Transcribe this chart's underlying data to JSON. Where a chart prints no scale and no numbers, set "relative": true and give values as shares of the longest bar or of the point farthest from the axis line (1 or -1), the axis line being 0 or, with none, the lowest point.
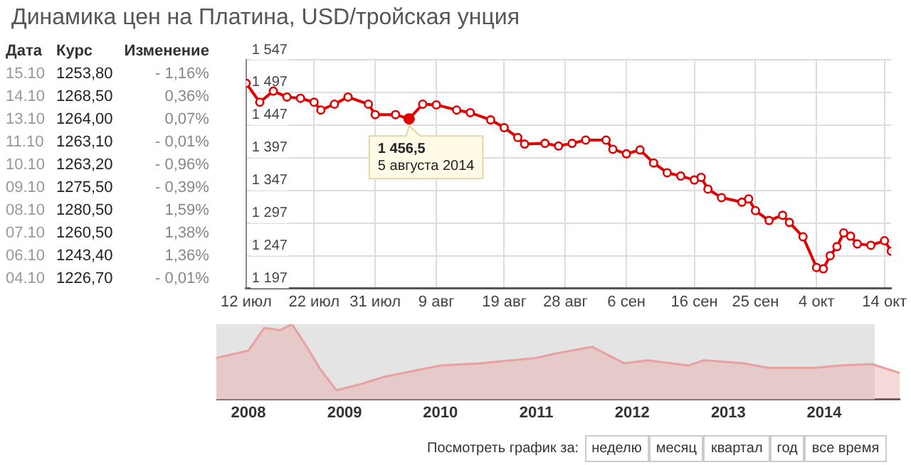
{
  "chart_data": [
    {
      "type": "other",
      "xlabel": "Дата",
      "categories": [
        "15.10",
        "14.10",
        "13.10",
        "11.10",
        "10.10",
        "09.10",
        "08.10",
        "07.10",
        "06.10",
        "04.10"
      ],
      "series": [
        {
          "name": "Курс",
          "values": [
            1253.8,
            1268.5,
            1264.0,
            1263.1,
            1263.2,
            1275.5,
            1280.5,
            1260.5,
            1243.4,
            1226.7
          ],
          "value_labels": [
            "1253,80",
            "1268,50",
            "1264,00",
            "1263,10",
            "1263,20",
            "1275,50",
            "1280,50",
            "1260,50",
            "1243,40",
            "1226,70"
          ]
        },
        {
          "name": "Изменение",
          "values": [
            -1.16,
            0.36,
            0.07,
            -0.01,
            -0.96,
            -0.39,
            1.59,
            1.38,
            1.36,
            -0.01
          ],
          "value_labels": [
            "- 1,16%",
            "0,36%",
            "0,07%",
            "- 0,01%",
            "- 0,96%",
            "- 0,39%",
            "1,59%",
            "1,38%",
            "1,36%",
            "- 0,01%"
          ]
        }
      ]
    },
    {
      "type": "line",
      "title": "Динамика цен на Платина, USD/тройская унция",
      "x": [
        "2014-07-12",
        "2014-07-14",
        "2014-07-16",
        "2014-07-18",
        "2014-07-20",
        "2014-07-22",
        "2014-07-23",
        "2014-07-25",
        "2014-07-27",
        "2014-07-30",
        "2014-07-31",
        "2014-08-03",
        "2014-08-05",
        "2014-08-07",
        "2014-08-09",
        "2014-08-12",
        "2014-08-14",
        "2014-08-17",
        "2014-08-19",
        "2014-08-21",
        "2014-08-22",
        "2014-08-25",
        "2014-08-27",
        "2014-08-29",
        "2014-08-31",
        "2014-09-03",
        "2014-09-04",
        "2014-09-06",
        "2014-09-08",
        "2014-09-10",
        "2014-09-12",
        "2014-09-14",
        "2014-09-16",
        "2014-09-17",
        "2014-09-18",
        "2014-09-20",
        "2014-09-23",
        "2014-09-24",
        "2014-09-25",
        "2014-09-27",
        "2014-09-29",
        "2014-09-30",
        "2014-10-02",
        "2014-10-04",
        "2014-10-05",
        "2014-10-06",
        "2014-10-07",
        "2014-10-08",
        "2014-10-09",
        "2014-10-10",
        "2014-10-12",
        "2014-10-14",
        "2014-10-15"
      ],
      "series": [
        {
          "color": "#e00000",
          "values": [
            1511,
            1482,
            1499,
            1490,
            1488,
            1482,
            1470,
            1479,
            1490,
            1479,
            1463,
            1463,
            1456.5,
            1479,
            1478,
            1470,
            1466,
            1455,
            1443,
            1428,
            1418,
            1419,
            1415,
            1419,
            1424,
            1424,
            1410,
            1403,
            1409,
            1389,
            1374,
            1369,
            1363,
            1367,
            1349,
            1336,
            1329,
            1334,
            1316,
            1301,
            1309,
            1298,
            1276,
            1229,
            1227,
            1247,
            1261,
            1282,
            1277,
            1265,
            1263,
            1270,
            1254
          ]
        }
      ],
      "xlim": [
        "2014-07-12",
        "2014-10-15"
      ],
      "xticks": [
        {
          "value": "2014-07-12",
          "label": "12 июл"
        },
        {
          "value": "2014-07-22",
          "label": "22 июл"
        },
        {
          "value": "2014-07-31",
          "label": "31 июл"
        },
        {
          "value": "2014-08-09",
          "label": "9 авг"
        },
        {
          "value": "2014-08-19",
          "label": "19 авг"
        },
        {
          "value": "2014-08-28",
          "label": "28 авг"
        },
        {
          "value": "2014-09-06",
          "label": "6 сен"
        },
        {
          "value": "2014-09-16",
          "label": "16 сен"
        },
        {
          "value": "2014-09-25",
          "label": "25 сен"
        },
        {
          "value": "2014-10-04",
          "label": "4 окт"
        },
        {
          "value": "2014-10-14",
          "label": "14 окт"
        }
      ],
      "ylim": [
        1197,
        1547
      ],
      "yticks": [
        {
          "value": 1197,
          "label": "1 197"
        },
        {
          "value": 1247,
          "label": "1 247"
        },
        {
          "value": 1297,
          "label": "1 297"
        },
        {
          "value": 1347,
          "label": "1 347"
        },
        {
          "value": 1397,
          "label": "1 397"
        },
        {
          "value": 1447,
          "label": "1 447"
        },
        {
          "value": 1497,
          "label": "1 497"
        },
        {
          "value": 1547,
          "label": "1 547"
        }
      ],
      "grid": true,
      "marker": "circle",
      "annotations": [
        {
          "text": "1 456,5\n5 августа 2014",
          "x": "2014-08-05",
          "y": 1456.5
        }
      ]
    },
    {
      "type": "area",
      "relative": true,
      "x": [
        "2007-09-01",
        "2008-01-01",
        "2008-03-01",
        "2008-05-01",
        "2008-06-15",
        "2008-08-01",
        "2008-10-01",
        "2008-12-01",
        "2009-03-01",
        "2009-06-01",
        "2010-01-01",
        "2010-06-01",
        "2011-01-01",
        "2011-03-01",
        "2011-08-01",
        "2011-12-01",
        "2012-03-01",
        "2012-08-01",
        "2012-10-01",
        "2013-03-01",
        "2013-06-01",
        "2013-12-01",
        "2014-03-01",
        "2014-07-01",
        "2014-10-15"
      ],
      "series": [
        {
          "color": "#e8a0a0",
          "values": [
            0.55,
            0.65,
            0.95,
            0.92,
            1,
            0.75,
            0.4,
            0.12,
            0.2,
            0.3,
            0.45,
            0.48,
            0.55,
            0.6,
            0.7,
            0.48,
            0.52,
            0.45,
            0.52,
            0.48,
            0.42,
            0.42,
            0.45,
            0.47,
            0.35
          ]
        }
      ],
      "xlim": [
        "2007-09-01",
        "2014-10-15"
      ],
      "xticks": [
        {
          "value": "2008-01-01",
          "label": "2008"
        },
        {
          "value": "2009-01-01",
          "label": "2009"
        },
        {
          "value": "2010-01-01",
          "label": "2010"
        },
        {
          "value": "2011-01-01",
          "label": "2011"
        },
        {
          "value": "2012-01-01",
          "label": "2012"
        },
        {
          "value": "2013-01-01",
          "label": "2013"
        },
        {
          "value": "2014-01-01",
          "label": "2014"
        }
      ],
      "bands": [
        {
          "axis": "x",
          "from": "2007-09-01",
          "to": "2014-07-12",
          "color": "#e4e4e4"
        }
      ],
      "annotations": [
        "Посмотреть график за:",
        "неделю",
        "месяц",
        "квартал",
        "год",
        "все время"
      ]
    }
  ]
}
